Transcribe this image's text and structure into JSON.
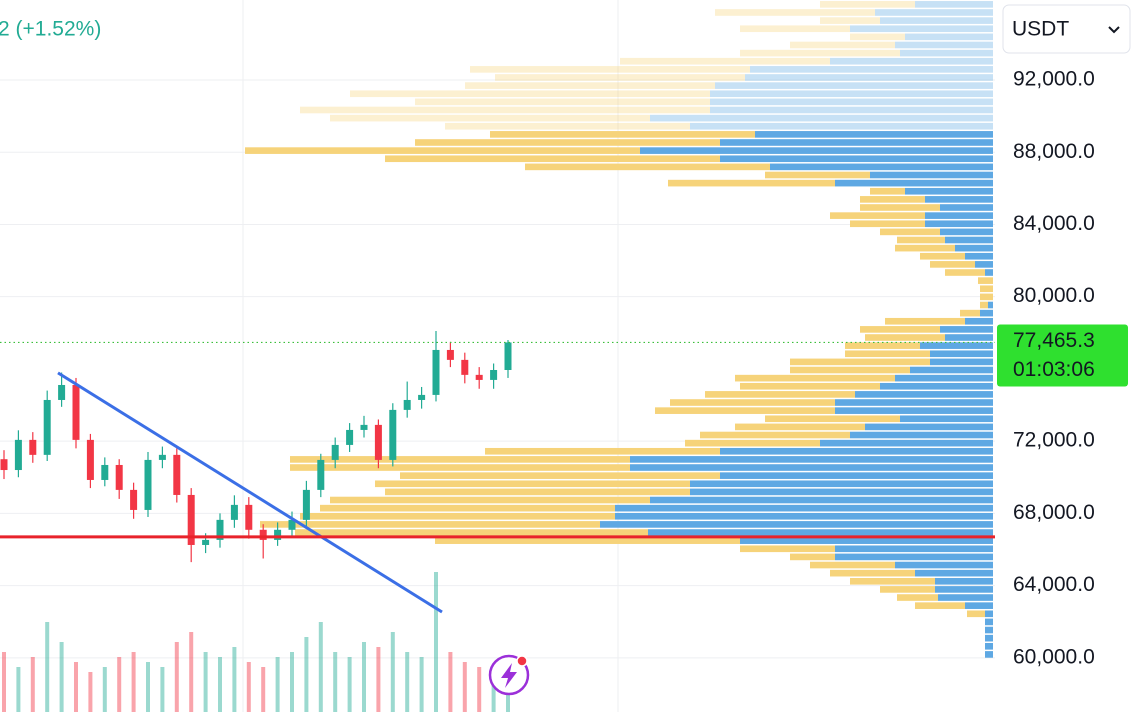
{
  "header": {
    "change": "2 (+1.52%)"
  },
  "currency_selector": "USDT",
  "chart_data": {
    "type": "candlestick",
    "ylim": [
      57000,
      96430
    ],
    "yticks": [
      {
        "value": 60000,
        "label": "60,000.0"
      },
      {
        "value": 64000,
        "label": "64,000.0"
      },
      {
        "value": 68000,
        "label": "68,000.0"
      },
      {
        "value": 72000,
        "label": "72,000.0"
      },
      {
        "value": 80000,
        "label": "80,000.0"
      },
      {
        "value": 84000,
        "label": "84,000.0"
      },
      {
        "value": 88000,
        "label": "88,000.0"
      },
      {
        "value": 92000,
        "label": "92,000.0"
      }
    ],
    "grid": true,
    "up_color": "#22ab94",
    "down_color": "#f23645",
    "open": [
      71000,
      70400,
      72070,
      71240,
      74280,
      75110,
      72070,
      69850,
      70680,
      69300,
      68190,
      70960,
      71240,
      69020,
      66250,
      66530,
      67640,
      68470,
      67090,
      66530,
      67090,
      67640,
      69300,
      70960,
      71790,
      72620,
      72900,
      70960,
      73730,
      74280,
      74560,
      77050,
      76500,
      75670,
      75390,
      75940
    ],
    "high": [
      71500,
      72600,
      72500,
      74800,
      75800,
      75500,
      72400,
      71100,
      71000,
      69700,
      71400,
      71700,
      71600,
      69400,
      66900,
      68000,
      69000,
      68900,
      67400,
      67500,
      68100,
      69800,
      71300,
      72200,
      73000,
      73400,
      73200,
      74100,
      75300,
      75000,
      78100,
      77500,
      76900,
      76100,
      76300,
      77600
    ],
    "low": [
      69900,
      70000,
      70800,
      70900,
      73900,
      71600,
      69400,
      69500,
      68800,
      67700,
      67800,
      70500,
      68600,
      65300,
      65800,
      66100,
      67200,
      66600,
      65500,
      66200,
      66700,
      67300,
      68900,
      70500,
      71400,
      72200,
      70500,
      70600,
      73300,
      73800,
      74200,
      76100,
      75200,
      74900,
      74900,
      75500
    ],
    "close": [
      70400,
      72070,
      71240,
      74280,
      75110,
      72070,
      69850,
      70680,
      69300,
      68190,
      70960,
      71240,
      69020,
      66250,
      66530,
      67640,
      68470,
      67090,
      66530,
      67090,
      67640,
      69300,
      70960,
      71790,
      72620,
      72900,
      70960,
      73730,
      74280,
      74560,
      77050,
      76500,
      75670,
      75390,
      75940,
      77465.3
    ],
    "volume": [
      60,
      45,
      55,
      90,
      70,
      50,
      40,
      45,
      55,
      60,
      50,
      45,
      70,
      80,
      60,
      55,
      65,
      50,
      45,
      55,
      60,
      75,
      90,
      60,
      55,
      70,
      65,
      80,
      60,
      55,
      140,
      60,
      50,
      45,
      40,
      35
    ],
    "last_price": {
      "value": 77465.3,
      "label": "77,465.3",
      "countdown": "01:03:06",
      "color": "#2fe02f"
    },
    "support_line": {
      "value": 66700,
      "color": "#e8232b"
    },
    "trend_line": {
      "values": [
        75780,
        62540
      ],
      "color": "#3b6fe6"
    },
    "volume_profile": {
      "bins": [
        59950,
        60400,
        60850,
        61300,
        61750,
        62200,
        62650,
        63100,
        63550,
        64000,
        64450,
        64900,
        65350,
        65800,
        66250,
        66700,
        67150,
        67600,
        68050,
        68500,
        68950,
        69400,
        69850,
        70300,
        70750,
        71200,
        71650,
        72100,
        72550,
        73000,
        73450,
        73900,
        74350,
        74800,
        75250,
        75700,
        76150,
        76600,
        77050,
        77500,
        77950,
        78400,
        78850,
        79300,
        79750,
        80200,
        80650,
        81100,
        81550,
        82000,
        82450,
        82900,
        83350,
        83800,
        84250,
        84700,
        85150,
        85600,
        86050,
        86500,
        86950,
        87400,
        87850,
        88300,
        88750,
        89200,
        89650,
        90100,
        90550,
        91000,
        91450,
        91900,
        92350,
        92800,
        93250,
        93700,
        94150,
        94600,
        95050,
        95500,
        95950,
        96400
      ],
      "value_area_high": 89200,
      "series": [
        {
          "color": "#5ea8e3",
          "values": [
            8,
            8,
            8,
            8,
            8,
            8,
            28,
            55,
            58,
            58,
            78,
            98,
            158,
            158,
            253,
            345,
            393,
            378,
            378,
            343,
            303,
            303,
            273,
            363,
            363,
            273,
            173,
            143,
            128,
            93,
            158,
            158,
            138,
            113,
            98,
            83,
            63,
            63,
            73,
            48,
            53,
            28,
            13,
            5,
            0,
            0,
            0,
            8,
            18,
            28,
            38,
            48,
            53,
            68,
            68,
            53,
            68,
            88,
            158,
            123,
            223,
            273,
            353,
            273,
            238,
            303,
            343,
            283,
            283,
            283,
            278,
            248,
            243,
            163,
            93,
            98,
            88,
            143,
            113,
            118,
            78
          ]
        },
        {
          "color": "#f6d37a",
          "values": [
            0,
            0,
            0,
            0,
            0,
            18,
            50,
            41,
            55,
            85,
            85,
            85,
            45,
            95,
            305,
            353,
            340,
            315,
            295,
            320,
            305,
            315,
            320,
            340,
            340,
            235,
            135,
            150,
            130,
            135,
            180,
            165,
            150,
            140,
            160,
            120,
            140,
            85,
            75,
            80,
            80,
            80,
            20,
            8,
            13,
            13,
            15,
            40,
            45,
            45,
            60,
            48,
            60,
            75,
            95,
            80,
            65,
            35,
            167,
            105,
            245,
            335,
            395,
            305,
            265,
            245,
            320,
            410,
            295,
            360,
            250,
            250,
            280,
            210,
            160,
            105,
            55,
            110,
            60,
            160,
            95
          ]
        }
      ]
    }
  }
}
